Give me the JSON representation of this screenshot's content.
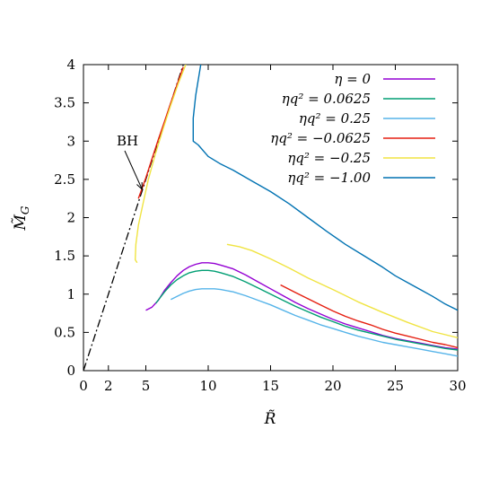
{
  "chart_data": {
    "type": "line",
    "xlabel": "R̃",
    "ylabel": "M̃",
    "ylabel_sub": "G",
    "xlim": [
      0,
      30
    ],
    "ylim": [
      0,
      4
    ],
    "xticks": [
      0,
      2,
      5,
      10,
      15,
      20,
      25,
      30
    ],
    "xtick_labels": [
      "0",
      "2",
      "5",
      "10",
      "15",
      "20",
      "25",
      "30"
    ],
    "yticks": [
      0,
      0.5,
      1,
      1.5,
      2,
      2.5,
      3,
      3.5,
      4
    ],
    "ytick_labels": [
      "0",
      "0.5",
      "1",
      "1.5",
      "2",
      "2.5",
      "3",
      "3.5",
      "4"
    ],
    "grid": false,
    "legend_position": "top-right",
    "annotations": [
      {
        "text": "BH",
        "arrow_to": [
          4.7,
          2.37
        ]
      }
    ],
    "reference_line": {
      "name": "BH",
      "style": "dash-dot",
      "color": "#000000",
      "x": [
        0,
        8.3
      ],
      "y": [
        0,
        4.15
      ]
    },
    "series": [
      {
        "name": "η = 0",
        "legend_text": "η = 0",
        "color": "#9400d3",
        "x": [
          5.0,
          5.5,
          6.0,
          6.5,
          7,
          7.5,
          8,
          8.5,
          9,
          9.5,
          10,
          10.5,
          11,
          12,
          13,
          14,
          15,
          16,
          17,
          18,
          19,
          20,
          21,
          22,
          23,
          24,
          25,
          26,
          27,
          28,
          29,
          30
        ],
        "y": [
          0.79,
          0.83,
          0.92,
          1.05,
          1.15,
          1.24,
          1.31,
          1.36,
          1.39,
          1.41,
          1.41,
          1.4,
          1.38,
          1.33,
          1.25,
          1.16,
          1.07,
          0.98,
          0.89,
          0.81,
          0.74,
          0.67,
          0.61,
          0.56,
          0.51,
          0.46,
          0.42,
          0.39,
          0.36,
          0.33,
          0.3,
          0.28
        ]
      },
      {
        "name": "ηq² = 0.0625",
        "legend_text": "ηq² = 0.0625",
        "color": "#009e73",
        "x": [
          5.8,
          6.5,
          7,
          7.5,
          8,
          8.5,
          9,
          9.5,
          10,
          10.5,
          11,
          12,
          13,
          14,
          15,
          16,
          17,
          18,
          19,
          20,
          21,
          22,
          23,
          24,
          25,
          26,
          27,
          28,
          29,
          30
        ],
        "y": [
          0.88,
          1.03,
          1.12,
          1.19,
          1.24,
          1.28,
          1.3,
          1.31,
          1.31,
          1.3,
          1.28,
          1.23,
          1.16,
          1.08,
          1.0,
          0.92,
          0.84,
          0.77,
          0.7,
          0.64,
          0.58,
          0.53,
          0.49,
          0.45,
          0.41,
          0.38,
          0.35,
          0.32,
          0.29,
          0.27
        ]
      },
      {
        "name": "ηq² = 0.25",
        "legend_text": "ηq² = 0.25",
        "color": "#56b4e9",
        "x": [
          7.0,
          7.5,
          8,
          8.5,
          9,
          9.5,
          10,
          10.5,
          11,
          12,
          13,
          14,
          15,
          16,
          17,
          18,
          19,
          20,
          21,
          22,
          23,
          24,
          25,
          26,
          27,
          28,
          29,
          30
        ],
        "y": [
          0.93,
          0.97,
          1.01,
          1.04,
          1.06,
          1.07,
          1.07,
          1.07,
          1.06,
          1.03,
          0.98,
          0.92,
          0.86,
          0.79,
          0.72,
          0.66,
          0.6,
          0.55,
          0.5,
          0.45,
          0.41,
          0.37,
          0.34,
          0.31,
          0.28,
          0.25,
          0.22,
          0.19
        ]
      },
      {
        "name": "ηq² = −0.0625",
        "legend_text": "ηq² = −0.0625",
        "color": "#e51e10",
        "segments": [
          {
            "x": [
              4.4,
              5,
              5.5,
              6,
              6.5,
              7,
              7.5,
              8
            ],
            "y": [
              2.25,
              2.52,
              2.77,
              3.02,
              3.26,
              3.5,
              3.74,
              3.97
            ]
          },
          {
            "x": [
              15.8,
              17,
              18,
              19,
              20,
              21,
              22,
              23,
              24,
              25,
              26,
              27,
              28,
              29,
              30
            ],
            "y": [
              1.12,
              1.02,
              0.94,
              0.86,
              0.78,
              0.71,
              0.65,
              0.6,
              0.54,
              0.49,
              0.45,
              0.41,
              0.37,
              0.34,
              0.3
            ]
          }
        ]
      },
      {
        "name": "ηq² = −0.25",
        "legend_text": "ηq² = −0.25",
        "color": "#f0e442",
        "segments": [
          {
            "x": [
              4.3,
              4.15,
              4.2,
              4.4,
              4.8,
              5.2,
              5.8,
              6.4,
              7.0,
              7.6,
              8.2
            ],
            "y": [
              1.41,
              1.45,
              1.65,
              1.9,
              2.2,
              2.5,
              2.85,
              3.17,
              3.47,
              3.75,
              4.0
            ]
          },
          {
            "x": [
              11.5,
              12.5,
              13.5,
              15,
              16.5,
              18,
              20,
              22,
              24,
              26,
              28,
              30
            ],
            "y": [
              1.65,
              1.62,
              1.57,
              1.46,
              1.34,
              1.21,
              1.06,
              0.9,
              0.76,
              0.63,
              0.51,
              0.43
            ]
          }
        ]
      },
      {
        "name": "ηq² = −1.00",
        "legend_text": "ηq² = −1.00",
        "color": "#0072b2",
        "x": [
          9.4,
          9.0,
          8.8,
          8.8,
          9.2,
          10.0,
          11.0,
          12.0,
          13.5,
          15.0,
          16.5,
          18.0,
          19.5,
          21.0,
          22.5,
          24.0,
          25.0,
          26.0,
          27.0,
          28.0,
          29.0,
          30.0
        ],
        "y": [
          4.0,
          3.6,
          3.3,
          3.0,
          2.95,
          2.8,
          2.7,
          2.62,
          2.48,
          2.34,
          2.18,
          2.0,
          1.82,
          1.65,
          1.5,
          1.35,
          1.24,
          1.15,
          1.06,
          0.97,
          0.87,
          0.79
        ]
      }
    ]
  }
}
